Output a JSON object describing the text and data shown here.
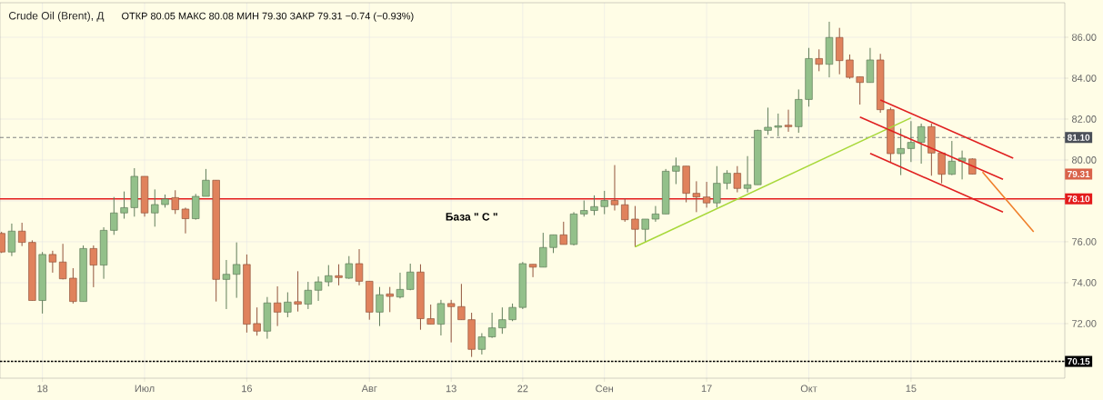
{
  "chart_data": {
    "type": "candlestick",
    "title": "Crude Oil (Brent), Д",
    "subtitle": "ОТКР 80.05  МАКС 80.08  МИН 79.30  ЗАКР 79.31  −0.74 (−0.93%)",
    "categories": [
      null,
      null,
      null,
      null,
      "18",
      null,
      null,
      null,
      null,
      null,
      null,
      null,
      null,
      null,
      "Июл",
      null,
      null,
      null,
      null,
      null,
      null,
      null,
      null,
      null,
      "16",
      null,
      null,
      null,
      null,
      null,
      null,
      null,
      null,
      null,
      null,
      null,
      "Авг",
      null,
      null,
      null,
      null,
      null,
      null,
      null,
      "13",
      null,
      null,
      null,
      null,
      null,
      null,
      "22",
      null,
      null,
      null,
      null,
      null,
      null,
      null,
      "Сен",
      null,
      null,
      null,
      null,
      null,
      null,
      null,
      null,
      null,
      "17",
      null,
      null,
      null,
      null,
      null,
      null,
      null,
      null,
      null,
      "Окт",
      null,
      null,
      null,
      null,
      null,
      null,
      null,
      null,
      null,
      "15",
      null,
      null,
      null,
      null,
      null,
      null,
      null,
      null,
      null,
      null,
      null,
      null,
      null,
      null,
      null
    ],
    "ohlc": [
      [
        76.41,
        76.49,
        75.45,
        75.5
      ],
      [
        75.5,
        76.89,
        75.3,
        76.52
      ],
      [
        76.52,
        76.93,
        75.79,
        75.97
      ],
      [
        75.97,
        76.07,
        73.13,
        73.13
      ],
      [
        73.13,
        75.5,
        72.49,
        75.38
      ],
      [
        75.38,
        75.56,
        74.49,
        75.01
      ],
      [
        75.01,
        75.9,
        74.16,
        74.19
      ],
      [
        74.22,
        74.71,
        72.98,
        73.08
      ],
      [
        73.08,
        75.82,
        73.08,
        75.67
      ],
      [
        75.67,
        75.82,
        73.78,
        74.86
      ],
      [
        74.86,
        76.71,
        74.19,
        76.56
      ],
      [
        76.56,
        78.19,
        76.34,
        77.41
      ],
      [
        77.41,
        78.46,
        77.13,
        77.67
      ],
      [
        77.67,
        79.6,
        77.23,
        79.2
      ],
      [
        79.2,
        79.2,
        77.23,
        77.41
      ],
      [
        77.41,
        78.56,
        76.74,
        77.82
      ],
      [
        77.82,
        78.31,
        77.67,
        78.09
      ],
      [
        78.16,
        78.52,
        77.36,
        77.57
      ],
      [
        77.6,
        77.67,
        76.41,
        77.13
      ],
      [
        77.13,
        78.34,
        77.08,
        78.22
      ],
      [
        78.22,
        79.56,
        78.22,
        79.01
      ],
      [
        79.01,
        79.01,
        73.08,
        74.16
      ],
      [
        74.16,
        75.11,
        72.71,
        74.41
      ],
      [
        74.41,
        75.97,
        73.26,
        74.89
      ],
      [
        74.89,
        75.38,
        71.56,
        71.97
      ],
      [
        72.0,
        72.79,
        71.41,
        71.63
      ],
      [
        71.63,
        73.3,
        71.26,
        73.01
      ],
      [
        73.01,
        73.82,
        71.88,
        72.56
      ],
      [
        72.56,
        73.53,
        72.31,
        73.05
      ],
      [
        73.07,
        74.56,
        72.59,
        72.95
      ],
      [
        72.95,
        74.04,
        72.71,
        73.63
      ],
      [
        73.63,
        74.3,
        73.11,
        74.04
      ],
      [
        74.04,
        74.86,
        73.82,
        74.34
      ],
      [
        74.34,
        74.9,
        73.87,
        74.25
      ],
      [
        74.22,
        75.3,
        74.19,
        74.93
      ],
      [
        74.93,
        75.64,
        73.87,
        74.07
      ],
      [
        74.07,
        74.07,
        72.19,
        72.56
      ],
      [
        72.56,
        73.79,
        71.88,
        73.41
      ],
      [
        73.45,
        73.79,
        72.56,
        73.33
      ],
      [
        73.3,
        74.49,
        73.23,
        73.67
      ],
      [
        73.67,
        74.93,
        73.63,
        74.52
      ],
      [
        74.52,
        74.9,
        71.7,
        72.24
      ],
      [
        72.24,
        72.93,
        71.97,
        71.97
      ],
      [
        71.97,
        73.16,
        71.42,
        72.98
      ],
      [
        72.98,
        73.16,
        71.08,
        72.83
      ],
      [
        72.83,
        73.94,
        72.19,
        72.19
      ],
      [
        72.19,
        72.53,
        70.37,
        70.74
      ],
      [
        70.74,
        71.53,
        70.49,
        71.35
      ],
      [
        71.35,
        72.53,
        71.3,
        71.79
      ],
      [
        71.79,
        72.79,
        71.5,
        72.19
      ],
      [
        72.19,
        72.98,
        72.12,
        72.79
      ],
      [
        72.79,
        75.01,
        72.71,
        74.93
      ],
      [
        74.9,
        74.9,
        74.27,
        74.76
      ],
      [
        74.76,
        76.44,
        74.76,
        75.72
      ],
      [
        75.72,
        76.34,
        75.45,
        76.34
      ],
      [
        76.34,
        76.98,
        75.87,
        75.87
      ],
      [
        75.87,
        77.45,
        75.82,
        77.36
      ],
      [
        77.36,
        78.02,
        77.23,
        77.53
      ],
      [
        77.53,
        78.27,
        77.3,
        77.72
      ],
      [
        77.72,
        78.49,
        77.35,
        78.02
      ],
      [
        78.02,
        79.75,
        77.53,
        77.81
      ],
      [
        77.81,
        78.12,
        76.98,
        77.08
      ],
      [
        77.11,
        77.75,
        75.75,
        76.61
      ],
      [
        76.61,
        77.11,
        75.97,
        77.11
      ],
      [
        77.11,
        77.75,
        76.98,
        77.36
      ],
      [
        77.36,
        79.56,
        77.36,
        79.45
      ],
      [
        79.45,
        80.12,
        78.82,
        79.7
      ],
      [
        79.7,
        79.7,
        77.93,
        78.37
      ],
      [
        78.37,
        78.96,
        77.45,
        78.19
      ],
      [
        78.19,
        78.93,
        77.67,
        77.9
      ],
      [
        77.9,
        79.7,
        77.67,
        78.86
      ],
      [
        78.86,
        79.5,
        78.56,
        79.35
      ],
      [
        79.35,
        79.7,
        78.42,
        78.61
      ],
      [
        78.61,
        80.19,
        78.41,
        78.79
      ],
      [
        78.79,
        81.48,
        78.79,
        81.45
      ],
      [
        81.45,
        82.56,
        81.23,
        81.6
      ],
      [
        81.6,
        82.27,
        81.16,
        81.67
      ],
      [
        81.7,
        82.46,
        81.38,
        81.63
      ],
      [
        81.63,
        83.45,
        81.33,
        82.96
      ],
      [
        82.96,
        85.48,
        82.61,
        84.96
      ],
      [
        84.96,
        85.41,
        84.34,
        84.68
      ],
      [
        84.68,
        86.76,
        84.04,
        85.99
      ],
      [
        85.99,
        86.46,
        84.19,
        84.86
      ],
      [
        84.89,
        85.16,
        83.97,
        84.04
      ],
      [
        84.07,
        84.07,
        82.71,
        83.79
      ],
      [
        83.79,
        85.48,
        83.79,
        84.89
      ],
      [
        84.89,
        85.19,
        82.31,
        82.46
      ],
      [
        82.46,
        82.56,
        79.9,
        80.31
      ],
      [
        80.31,
        81.53,
        79.26,
        80.56
      ],
      [
        80.56,
        81.9,
        79.9,
        80.86
      ],
      [
        80.86,
        81.78,
        79.82,
        81.63
      ],
      [
        81.63,
        81.78,
        79.23,
        80.34
      ],
      [
        80.34,
        80.34,
        78.86,
        79.3
      ],
      [
        79.3,
        80.93,
        79.26,
        79.94
      ],
      [
        79.94,
        80.46,
        79.05,
        80.09
      ],
      [
        80.05,
        80.08,
        79.3,
        79.31
      ],
      null,
      null,
      null,
      null,
      null,
      null,
      null,
      null,
      null
    ],
    "colors": [
      "#e0825c",
      "#93c08a",
      "#e0825c",
      "#e0825c",
      "#93c08a",
      "#e0825c",
      "#e0825c",
      "#e0825c",
      "#93c08a",
      "#e0825c",
      "#93c08a",
      "#93c08a",
      "#93c08a",
      "#93c08a",
      "#e0825c",
      "#93c08a",
      "#93c08a",
      "#e0825c",
      "#e0825c",
      "#93c08a",
      "#93c08a",
      "#e0825c",
      "#93c08a",
      "#93c08a",
      "#e0825c",
      "#e0825c",
      "#93c08a",
      "#e0825c",
      "#93c08a",
      "#e0825c",
      "#93c08a",
      "#93c08a",
      "#93c08a",
      "#e0825c",
      "#93c08a",
      "#e0825c",
      "#e0825c",
      "#93c08a",
      "#e0825c",
      "#93c08a",
      "#93c08a",
      "#e0825c",
      "#e0825c",
      "#93c08a",
      "#e0825c",
      "#e0825c",
      "#e0825c",
      "#93c08a",
      "#93c08a",
      "#93c08a",
      "#93c08a",
      "#93c08a",
      "#e0825c",
      "#93c08a",
      "#93c08a",
      "#e0825c",
      "#93c08a",
      "#93c08a",
      "#93c08a",
      "#93c08a",
      "#e0825c",
      "#e0825c",
      "#e0825c",
      "#93c08a",
      "#93c08a",
      "#93c08a",
      "#93c08a",
      "#e0825c",
      "#e0825c",
      "#e0825c",
      "#93c08a",
      "#93c08a",
      "#e0825c",
      "#93c08a",
      "#93c08a",
      "#93c08a",
      "#93c08a",
      "#e0825c",
      "#93c08a",
      "#93c08a",
      "#e0825c",
      "#93c08a",
      "#e0825c",
      "#e0825c",
      "#e0825c",
      "#93c08a",
      "#e0825c",
      "#e0825c",
      "#93c08a",
      "#93c08a",
      "#93c08a",
      "#e0825c",
      "#e0825c",
      "#93c08a",
      "#93c08a",
      "#e0825c",
      null,
      null,
      null,
      null,
      null,
      null,
      null,
      null,
      null
    ],
    "series": [
      {
        "type": "line",
        "color": "#a8d83a",
        "values": [
          null,
          null,
          null,
          null,
          null,
          null,
          null,
          null,
          null,
          null,
          null,
          null,
          null,
          null,
          null,
          null,
          null,
          null,
          null,
          null,
          null,
          null,
          null,
          null,
          null,
          null,
          null,
          null,
          null,
          null,
          null,
          null,
          null,
          null,
          null,
          null,
          null,
          null,
          null,
          null,
          null,
          null,
          null,
          null,
          null,
          null,
          null,
          null,
          null,
          null,
          null,
          null,
          null,
          null,
          null,
          null,
          null,
          null,
          null,
          null,
          null,
          null,
          75.75,
          null,
          null,
          null,
          null,
          null,
          null,
          null,
          null,
          null,
          null,
          null,
          null,
          null,
          null,
          null,
          null,
          null,
          null,
          null,
          null,
          null,
          null,
          null,
          null,
          null,
          null,
          82.06,
          null,
          null,
          null,
          null,
          null,
          null,
          null,
          null,
          null,
          null,
          null,
          null,
          null,
          null,
          null
        ]
      },
      {
        "type": "line",
        "color": "#e02020",
        "values": [
          null,
          null,
          null,
          null,
          null,
          null,
          null,
          null,
          null,
          null,
          null,
          null,
          null,
          null,
          null,
          null,
          null,
          null,
          null,
          null,
          null,
          null,
          null,
          null,
          null,
          null,
          null,
          null,
          null,
          null,
          null,
          null,
          null,
          null,
          null,
          null,
          null,
          null,
          null,
          null,
          null,
          null,
          null,
          null,
          null,
          null,
          null,
          null,
          null,
          null,
          null,
          null,
          null,
          null,
          null,
          null,
          null,
          null,
          null,
          null,
          null,
          null,
          null,
          null,
          null,
          null,
          null,
          null,
          null,
          null,
          null,
          null,
          null,
          null,
          null,
          null,
          null,
          null,
          null,
          null,
          null,
          null,
          null,
          null,
          null,
          null,
          82.93,
          null,
          null,
          null,
          null,
          null,
          null,
          null,
          null,
          null,
          null,
          null,
          null,
          80.09,
          null,
          null,
          null,
          null,
          null
        ]
      },
      {
        "type": "line",
        "color": "#e02020",
        "values": [
          null,
          null,
          null,
          null,
          null,
          null,
          null,
          null,
          null,
          null,
          null,
          null,
          null,
          null,
          null,
          null,
          null,
          null,
          null,
          null,
          null,
          null,
          null,
          null,
          null,
          null,
          null,
          null,
          null,
          null,
          null,
          null,
          null,
          null,
          null,
          null,
          null,
          null,
          null,
          null,
          null,
          null,
          null,
          null,
          null,
          null,
          null,
          null,
          null,
          null,
          null,
          null,
          null,
          null,
          null,
          null,
          null,
          null,
          null,
          null,
          null,
          null,
          null,
          null,
          null,
          null,
          null,
          null,
          null,
          null,
          null,
          null,
          null,
          null,
          null,
          null,
          null,
          null,
          null,
          null,
          null,
          null,
          null,
          null,
          82.1,
          null,
          null,
          null,
          null,
          null,
          null,
          null,
          null,
          null,
          null,
          null,
          null,
          null,
          79.05,
          null,
          null,
          null,
          null,
          null,
          null
        ]
      },
      {
        "type": "line",
        "color": "#e02020",
        "values": [
          null,
          null,
          null,
          null,
          null,
          null,
          null,
          null,
          null,
          null,
          null,
          null,
          null,
          null,
          null,
          null,
          null,
          null,
          null,
          null,
          null,
          null,
          null,
          null,
          null,
          null,
          null,
          null,
          null,
          null,
          null,
          null,
          null,
          null,
          null,
          null,
          null,
          null,
          null,
          null,
          null,
          null,
          null,
          null,
          null,
          null,
          null,
          null,
          null,
          null,
          null,
          null,
          null,
          null,
          null,
          null,
          null,
          null,
          null,
          null,
          null,
          null,
          null,
          null,
          null,
          null,
          null,
          null,
          null,
          null,
          null,
          null,
          null,
          null,
          null,
          null,
          null,
          null,
          null,
          null,
          null,
          null,
          null,
          null,
          null,
          80.32,
          null,
          null,
          null,
          null,
          null,
          null,
          null,
          null,
          null,
          null,
          null,
          null,
          77.45,
          null,
          null,
          null,
          null,
          null,
          null
        ]
      },
      {
        "type": "line",
        "color": "#f07f2a",
        "values": [
          null,
          null,
          null,
          null,
          null,
          null,
          null,
          null,
          null,
          null,
          null,
          null,
          null,
          null,
          null,
          null,
          null,
          null,
          null,
          null,
          null,
          null,
          null,
          null,
          null,
          null,
          null,
          null,
          null,
          null,
          null,
          null,
          null,
          null,
          null,
          null,
          null,
          null,
          null,
          null,
          null,
          null,
          null,
          null,
          null,
          null,
          null,
          null,
          null,
          null,
          null,
          null,
          null,
          null,
          null,
          null,
          null,
          null,
          null,
          null,
          null,
          null,
          null,
          null,
          null,
          null,
          null,
          null,
          null,
          null,
          null,
          null,
          null,
          null,
          null,
          null,
          null,
          null,
          null,
          null,
          null,
          null,
          null,
          null,
          null,
          null,
          null,
          null,
          null,
          null,
          null,
          null,
          null,
          null,
          null,
          null,
          79.41,
          null,
          null,
          null,
          null,
          76.49,
          null,
          null,
          null
        ]
      }
    ],
    "ylim": [
      69.33,
      87.69
    ],
    "yticks": [
      {
        "value": 72,
        "label": "72.00"
      },
      {
        "value": 74,
        "label": "74.00"
      },
      {
        "value": 76,
        "label": "76.00"
      },
      {
        "value": 78,
        "label": null
      },
      {
        "value": 80,
        "label": "80.00"
      },
      {
        "value": 82,
        "label": "82.00"
      },
      {
        "value": 84,
        "label": "84.00"
      },
      {
        "value": 86,
        "label": "86.00"
      }
    ],
    "grid": true,
    "ref_lines": [
      {
        "axis": "y",
        "value": 78.1,
        "label": "78.10",
        "color": "#e31b1b",
        "line_style": "solid"
      },
      {
        "axis": "y",
        "value": 81.1,
        "label": "81.10",
        "color": "#4a4f58",
        "line_style": "dashed"
      },
      {
        "axis": "y",
        "value": 70.15,
        "label": "70.15",
        "color": "#000000",
        "line_style": "dotted"
      }
    ],
    "annotations": [
      "База  \" С \"",
      "79.31"
    ]
  }
}
